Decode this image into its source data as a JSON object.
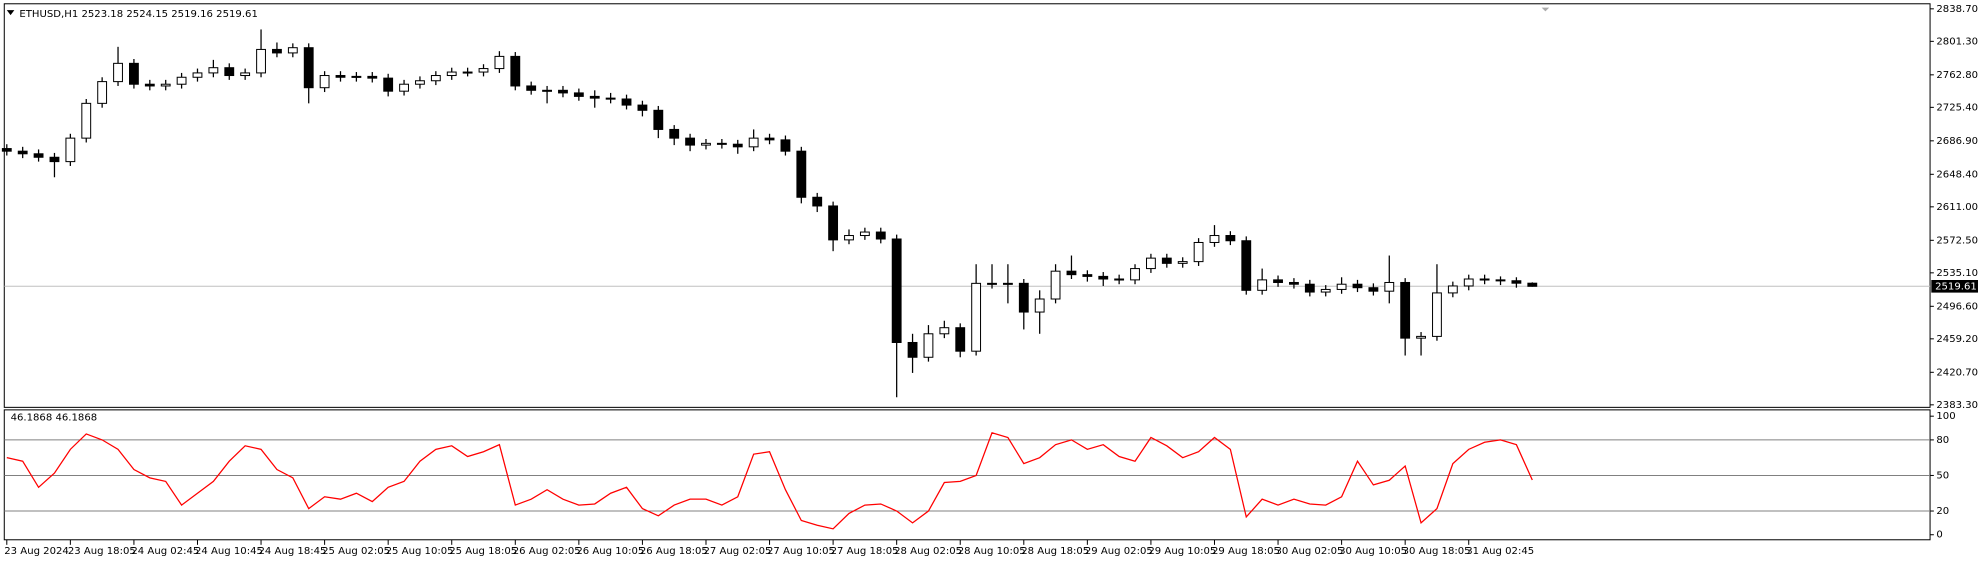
{
  "chart_data": {
    "type": "candlestick",
    "symbol": "ETHUSD,H1",
    "categories": [
      "23 Aug 2024",
      null,
      null,
      null,
      "23 Aug 18:05",
      null,
      null,
      null,
      "24 Aug 02:45",
      null,
      null,
      null,
      "24 Aug 10:45",
      null,
      null,
      null,
      "24 Aug 18:45",
      null,
      null,
      null,
      "25 Aug 02:05",
      null,
      null,
      null,
      "25 Aug 10:05",
      null,
      null,
      null,
      "25 Aug 18:05",
      null,
      null,
      null,
      "26 Aug 02:05",
      null,
      null,
      null,
      "26 Aug 10:05",
      null,
      null,
      null,
      "26 Aug 18:05",
      null,
      null,
      null,
      "27 Aug 02:05",
      null,
      null,
      null,
      "27 Aug 10:05",
      null,
      null,
      null,
      "27 Aug 18:05",
      null,
      null,
      null,
      "28 Aug 02:05",
      null,
      null,
      null,
      "28 Aug 10:05",
      null,
      null,
      null,
      "28 Aug 18:05",
      null,
      null,
      null,
      "29 Aug 02:05",
      null,
      null,
      null,
      "29 Aug 10:05",
      null,
      null,
      null,
      "29 Aug 18:05",
      null,
      null,
      null,
      "30 Aug 02:05",
      null,
      null,
      null,
      "30 Aug 10:05",
      null,
      null,
      null,
      "30 Aug 18:05",
      null,
      null,
      null,
      "31 Aug 02:45",
      null,
      null,
      null,
      null
    ],
    "open": [
      2678,
      2675,
      2672,
      2668,
      2663,
      2690,
      2730,
      2755,
      2776,
      2752,
      2750,
      2752,
      2760,
      2765,
      2771,
      2762,
      2765,
      2792,
      2788,
      2794,
      2748,
      2762,
      2760,
      2761,
      2759,
      2744,
      2752,
      2756,
      2762,
      2766,
      2766,
      2770,
      2784,
      2750,
      2745,
      2745,
      2742,
      2738,
      2736,
      2735,
      2728,
      2722,
      2700,
      2690,
      2682,
      2684,
      2683,
      2680,
      2690,
      2688,
      2675,
      2622,
      2612,
      2573,
      2578,
      2582,
      2574,
      2455,
      2438,
      2465,
      2472,
      2445,
      2523,
      2522,
      2523,
      2490,
      2505,
      2537,
      2533,
      2531,
      2528,
      2527,
      2540,
      2552,
      2546,
      2548,
      2570,
      2578,
      2572,
      2515,
      2527,
      2524,
      2522,
      2513,
      2516,
      2522,
      2518,
      2514,
      2524,
      2460,
      2462,
      2512,
      2520,
      2528,
      2527,
      2526,
      2523.18
    ],
    "high": [
      2683,
      2680,
      2677,
      2673,
      2695,
      2735,
      2760,
      2795,
      2781,
      2757,
      2757,
      2765,
      2770,
      2780,
      2776,
      2770,
      2815,
      2800,
      2799,
      2799,
      2767,
      2767,
      2766,
      2766,
      2764,
      2757,
      2761,
      2767,
      2771,
      2771,
      2775,
      2790,
      2789,
      2755,
      2750,
      2750,
      2747,
      2745,
      2742,
      2740,
      2733,
      2727,
      2705,
      2695,
      2689,
      2689,
      2688,
      2700,
      2695,
      2693,
      2680,
      2627,
      2617,
      2585,
      2587,
      2587,
      2579,
      2465,
      2475,
      2480,
      2477,
      2545,
      2545,
      2545,
      2528,
      2515,
      2545,
      2555,
      2538,
      2536,
      2533,
      2545,
      2557,
      2557,
      2553,
      2575,
      2590,
      2583,
      2577,
      2540,
      2532,
      2529,
      2527,
      2521,
      2530,
      2527,
      2523,
      2555,
      2529,
      2467,
      2545,
      2525,
      2533,
      2533,
      2531,
      2530,
      2524.15
    ],
    "low": [
      2670,
      2667,
      2663,
      2645,
      2658,
      2685,
      2725,
      2750,
      2747,
      2745,
      2745,
      2747,
      2755,
      2760,
      2757,
      2757,
      2760,
      2783,
      2783,
      2730,
      2743,
      2755,
      2755,
      2754,
      2738,
      2739,
      2747,
      2751,
      2757,
      2761,
      2761,
      2765,
      2745,
      2740,
      2730,
      2737,
      2733,
      2725,
      2730,
      2723,
      2715,
      2690,
      2682,
      2675,
      2677,
      2678,
      2672,
      2675,
      2683,
      2670,
      2615,
      2605,
      2560,
      2568,
      2573,
      2569,
      2392,
      2420,
      2433,
      2460,
      2438,
      2440,
      2517,
      2500,
      2470,
      2465,
      2500,
      2528,
      2525,
      2520,
      2522,
      2522,
      2535,
      2541,
      2541,
      2543,
      2565,
      2567,
      2510,
      2510,
      2519,
      2517,
      2508,
      2508,
      2511,
      2513,
      2509,
      2500,
      2440,
      2440,
      2457,
      2507,
      2515,
      2522,
      2521,
      2518,
      2519.16
    ],
    "close": [
      2675,
      2672,
      2668,
      2663,
      2690,
      2730,
      2755,
      2776,
      2752,
      2750,
      2752,
      2760,
      2765,
      2771,
      2762,
      2765,
      2792,
      2788,
      2794,
      2748,
      2762,
      2760,
      2761,
      2759,
      2744,
      2752,
      2756,
      2762,
      2766,
      2766,
      2770,
      2784,
      2750,
      2745,
      2745,
      2742,
      2738,
      2736,
      2735,
      2728,
      2722,
      2700,
      2690,
      2682,
      2684,
      2683,
      2680,
      2690,
      2688,
      2675,
      2622,
      2612,
      2573,
      2578,
      2582,
      2574,
      2455,
      2438,
      2465,
      2472,
      2445,
      2523,
      2522,
      2523,
      2490,
      2505,
      2537,
      2533,
      2531,
      2528,
      2527,
      2540,
      2552,
      2546,
      2548,
      2570,
      2578,
      2572,
      2515,
      2527,
      2524,
      2522,
      2513,
      2516,
      2522,
      2518,
      2514,
      2524,
      2460,
      2462,
      2512,
      2520,
      2528,
      2527,
      2526,
      2523.18,
      2519.61
    ],
    "ylim": [
      2383.3,
      2838.7
    ],
    "yticks": [
      {
        "value": 2383.3,
        "label": "2383.30"
      },
      {
        "value": 2420.7,
        "label": "2420.70"
      },
      {
        "value": 2459.2,
        "label": "2459.20"
      },
      {
        "value": 2496.6,
        "label": "2496.60"
      },
      {
        "value": 2535.1,
        "label": "2535.10"
      },
      {
        "value": 2572.5,
        "label": "2572.50"
      },
      {
        "value": 2611,
        "label": "2611.00"
      },
      {
        "value": 2648.4,
        "label": "2648.40"
      },
      {
        "value": 2686.9,
        "label": "2686.90"
      },
      {
        "value": 2725.4,
        "label": "2725.40"
      },
      {
        "value": 2762.8,
        "label": "2762.80"
      },
      {
        "value": 2801.3,
        "label": "2801.30"
      },
      {
        "value": 2838.7,
        "label": "2838.70"
      }
    ],
    "up_color": "#ffffff",
    "down_color": "#000000",
    "edge_color": "#000000",
    "last_price_line": true,
    "indicator": {
      "type": "line",
      "color": "#ff0000",
      "values": [
        65,
        62,
        40,
        52,
        72,
        85,
        80,
        72,
        55,
        48,
        45,
        25,
        35,
        45,
        62,
        75,
        72,
        55,
        48,
        22,
        32,
        30,
        35,
        28,
        40,
        45,
        62,
        72,
        75,
        66,
        70,
        76,
        25,
        30,
        38,
        30,
        25,
        26,
        35,
        40,
        22,
        16,
        25,
        30,
        30,
        25,
        32,
        68,
        70,
        38,
        12,
        8,
        5,
        18,
        25,
        26,
        20,
        10,
        20,
        44,
        45,
        50,
        86,
        82,
        60,
        65,
        76,
        80,
        72,
        76,
        66,
        62,
        82,
        75,
        65,
        70,
        82,
        72,
        15,
        30,
        25,
        30,
        26,
        25,
        32,
        62,
        42,
        46,
        58,
        10,
        22,
        60,
        72,
        78,
        80,
        76,
        46.1868
      ],
      "ylim": [
        0,
        100
      ],
      "yticks": [
        0,
        20,
        50,
        80,
        100
      ],
      "levels": [
        20,
        50,
        80
      ]
    }
  }
}
